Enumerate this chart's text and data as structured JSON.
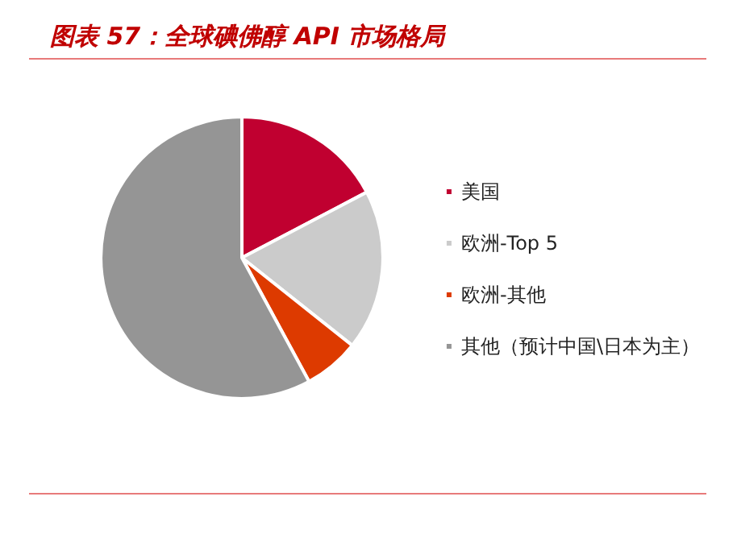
{
  "chart_data": {
    "type": "pie",
    "title": "图表 57：全球碘佛醇 API 市场格局",
    "categories": [
      "美国",
      "欧洲-Top 5",
      "欧洲-其他",
      "其他（预计中国\\日本为主）"
    ],
    "values": [
      17.3,
      18.4,
      6.4,
      57.9
    ],
    "colors": [
      "#c00030",
      "#cbcbcb",
      "#dd3a00",
      "#959595"
    ],
    "legend": "right"
  }
}
